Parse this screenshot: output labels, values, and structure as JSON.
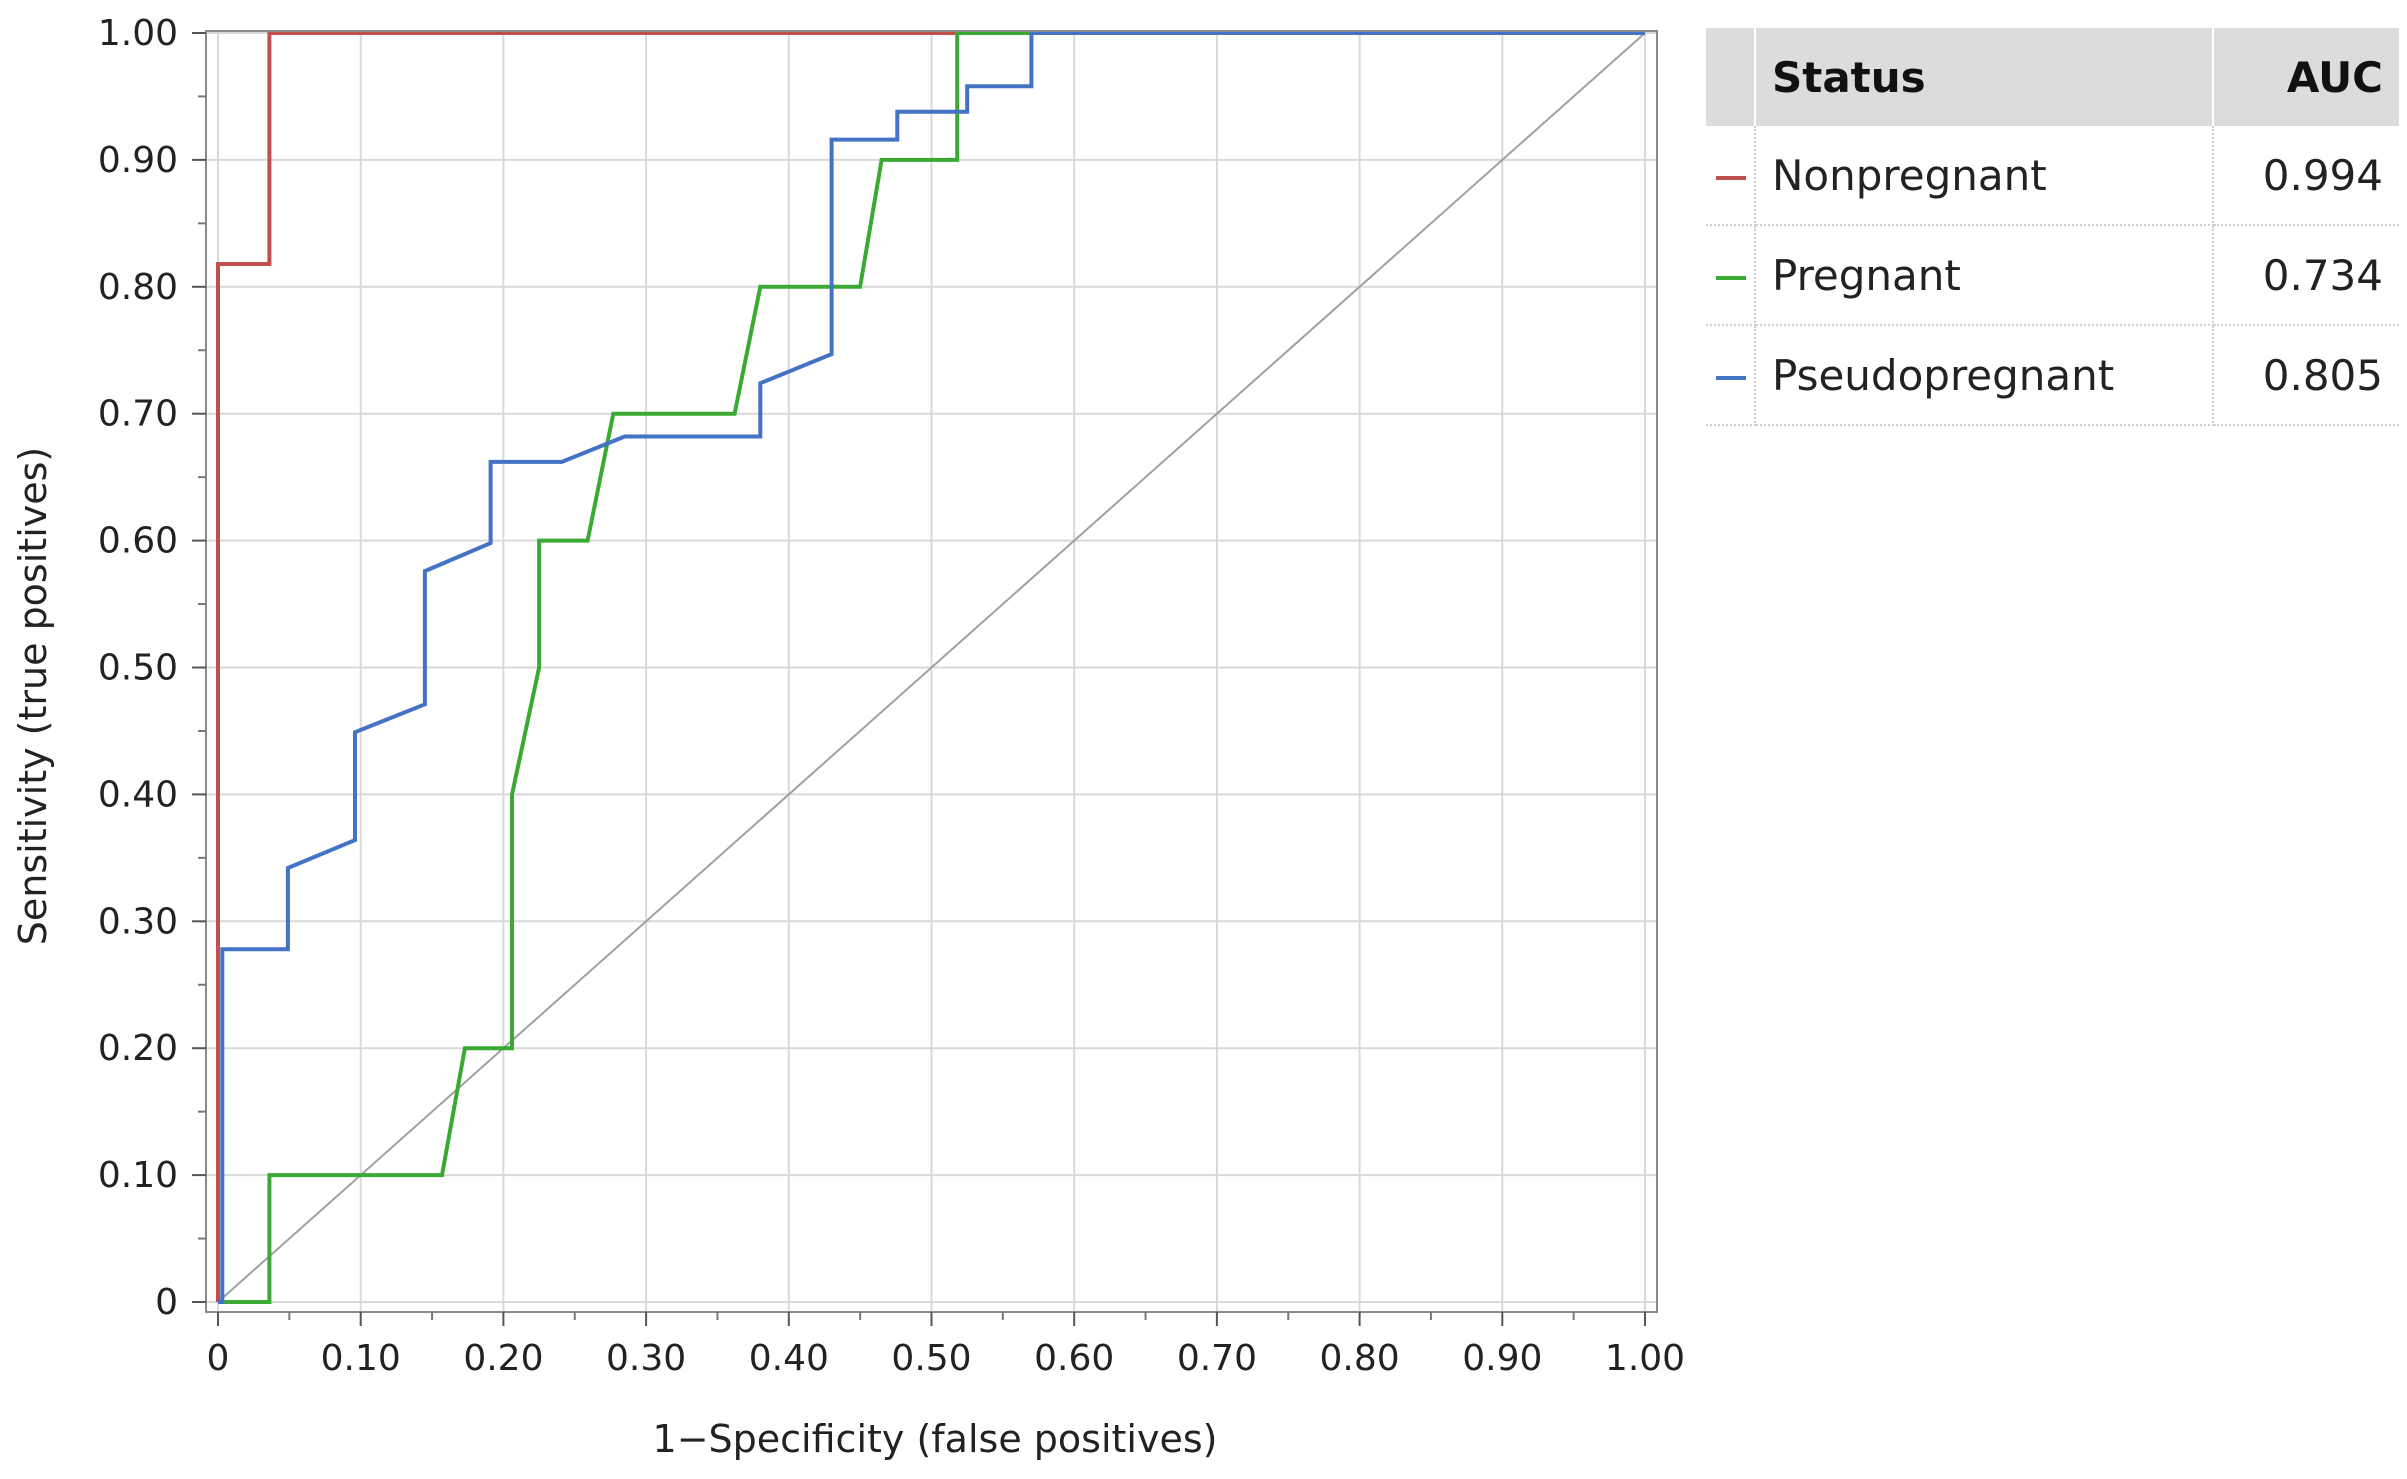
{
  "chart_data": {
    "type": "line",
    "xlabel": "1−Specificity (false positives)",
    "ylabel": "Sensitivity (true positives)",
    "xlim": [
      0,
      1
    ],
    "ylim": [
      0,
      1
    ],
    "x_ticks": [
      "0",
      "0.10",
      "0.20",
      "0.30",
      "0.40",
      "0.50",
      "0.60",
      "0.70",
      "0.80",
      "0.90",
      "1.00"
    ],
    "y_ticks": [
      "0",
      "0.10",
      "0.20",
      "0.30",
      "0.40",
      "0.50",
      "0.60",
      "0.70",
      "0.80",
      "0.90",
      "1.00"
    ],
    "grid": true,
    "reference_line": {
      "x": [
        0,
        1
      ],
      "y": [
        0,
        1
      ],
      "color": "#a0a0a0"
    },
    "series": [
      {
        "name": "Nonpregnant",
        "color": "#c0504d",
        "auc": "0.994",
        "x": [
          0,
          0,
          0,
          0.036,
          0.036,
          0.52,
          1.0
        ],
        "y": [
          0,
          0.278,
          0.818,
          0.818,
          1.0,
          1.0,
          1.0
        ]
      },
      {
        "name": "Pregnant",
        "color": "#3aaa35",
        "auc": "0.734",
        "x": [
          0,
          0.036,
          0.036,
          0.157,
          0.173,
          0.206,
          0.206,
          0.225,
          0.225,
          0.259,
          0.277,
          0.362,
          0.38,
          0.45,
          0.465,
          0.518,
          0.518,
          1.0
        ],
        "y": [
          0,
          0,
          0.1,
          0.1,
          0.2,
          0.2,
          0.4,
          0.5,
          0.6,
          0.6,
          0.7,
          0.7,
          0.8,
          0.8,
          0.9,
          0.9,
          1.0,
          1.0
        ]
      },
      {
        "name": "Pseudopregnant",
        "color": "#4472c4",
        "auc": "0.805",
        "x": [
          0,
          0.003,
          0.003,
          0.049,
          0.049,
          0.096,
          0.096,
          0.145,
          0.145,
          0.191,
          0.191,
          0.241,
          0.285,
          0.38,
          0.38,
          0.43,
          0.43,
          0.476,
          0.476,
          0.525,
          0.525,
          0.57,
          0.57,
          1.0
        ],
        "y": [
          0,
          0,
          0.278,
          0.278,
          0.342,
          0.364,
          0.449,
          0.471,
          0.576,
          0.598,
          0.662,
          0.662,
          0.682,
          0.682,
          0.724,
          0.747,
          0.916,
          0.916,
          0.938,
          0.938,
          0.958,
          0.958,
          1.0,
          1.0
        ]
      }
    ]
  },
  "legend": {
    "header_status": "Status",
    "header_auc": "AUC",
    "rows": [
      {
        "name": "Nonpregnant",
        "auc": "0.994",
        "color": "#c0504d"
      },
      {
        "name": "Pregnant",
        "auc": "0.734",
        "color": "#3aaa35"
      },
      {
        "name": "Pseudopregnant",
        "auc": "0.805",
        "color": "#4472c4"
      }
    ]
  }
}
